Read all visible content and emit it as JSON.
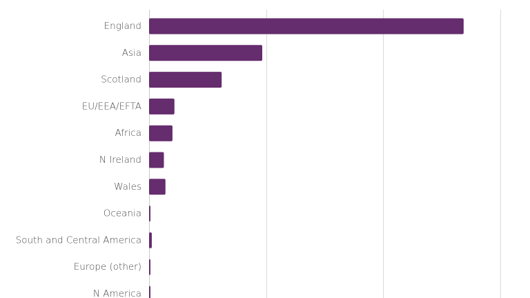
{
  "chart_data": {
    "type": "bar",
    "orientation": "horizontal",
    "categories": [
      "England",
      "Asia",
      "Scotland",
      "EU/EEA/EFTA",
      "Africa",
      "N Ireland",
      "Wales",
      "Oceania",
      "South and Central America",
      "Europe (other)",
      "N America"
    ],
    "values": [
      4030,
      1450,
      930,
      325,
      300,
      190,
      210,
      15,
      35,
      15,
      10
    ],
    "xlim": [
      0,
      4500
    ],
    "grid_values": [
      0,
      1500,
      3000,
      4500
    ],
    "grid": true,
    "bar_color": "#652c6e"
  }
}
